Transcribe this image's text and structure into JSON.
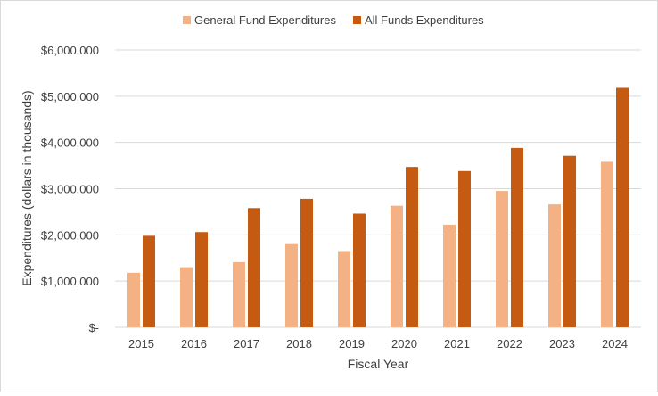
{
  "chart_data": {
    "type": "bar",
    "title": "",
    "xlabel": "Fiscal Year",
    "ylabel": "Expenditures (dollars in thousands)",
    "categories": [
      "2015",
      "2016",
      "2017",
      "2018",
      "2019",
      "2020",
      "2021",
      "2022",
      "2023",
      "2024"
    ],
    "series": [
      {
        "name": "General Fund Expenditures",
        "color": "#f4b183",
        "values": [
          1180000,
          1300000,
          1410000,
          1800000,
          1650000,
          2630000,
          2220000,
          2950000,
          2660000,
          3580000
        ]
      },
      {
        "name": "All Funds Expenditures",
        "color": "#c55a11",
        "values": [
          1980000,
          2060000,
          2580000,
          2780000,
          2460000,
          3470000,
          3380000,
          3880000,
          3710000,
          5180000
        ]
      }
    ],
    "ylim": [
      0,
      6000000
    ],
    "yticks": [
      0,
      1000000,
      2000000,
      3000000,
      4000000,
      5000000,
      6000000
    ],
    "ytick_labels": [
      "$-",
      "$1,000,000",
      "$2,000,000",
      "$3,000,000",
      "$4,000,000",
      "$5,000,000",
      "$6,000,000"
    ],
    "grid": true,
    "gridline_color": "#d9d9d9",
    "legend_position": "top"
  }
}
